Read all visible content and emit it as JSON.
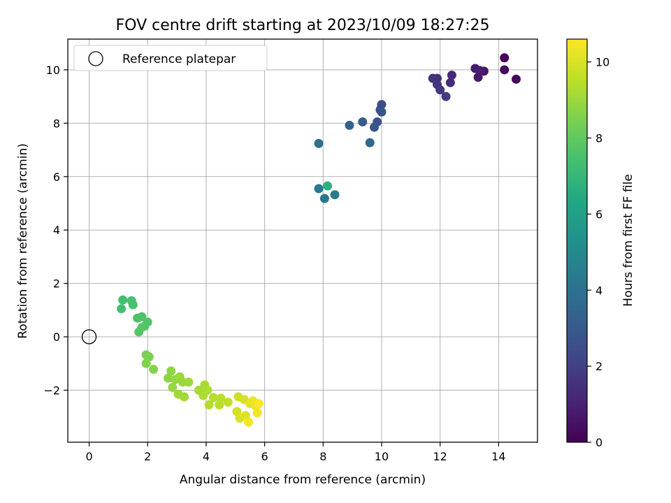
{
  "chart_data": {
    "type": "scatter",
    "title": "FOV centre drift starting at 2023/10/09 18:27:25",
    "xlabel": "Angular distance from reference (arcmin)",
    "ylabel": "Rotation from reference (arcmin)",
    "xlim": [
      -0.73,
      15.33
    ],
    "ylim": [
      -3.95,
      11.15
    ],
    "xticks": [
      0,
      2,
      4,
      6,
      8,
      10,
      12,
      14
    ],
    "yticks": [
      -2,
      0,
      2,
      4,
      6,
      8,
      10
    ],
    "grid": true,
    "legend": {
      "placement": "top-left",
      "entries": [
        "Reference platepar"
      ]
    },
    "reference_point": {
      "x": 0,
      "y": 0
    },
    "colorbar": {
      "label": "Hours from first FF file",
      "colormap": "viridis",
      "range": [
        0,
        10.6
      ],
      "ticks": [
        0,
        2,
        4,
        6,
        8,
        10
      ]
    },
    "points": [
      {
        "x": 14.2,
        "y": 10.45,
        "t": 0.1
      },
      {
        "x": 14.6,
        "y": 9.65,
        "t": 0.2
      },
      {
        "x": 14.2,
        "y": 10.0,
        "t": 0.3
      },
      {
        "x": 13.5,
        "y": 9.95,
        "t": 0.6
      },
      {
        "x": 13.3,
        "y": 9.72,
        "t": 0.7
      },
      {
        "x": 13.2,
        "y": 10.05,
        "t": 0.8
      },
      {
        "x": 13.35,
        "y": 9.98,
        "t": 0.9
      },
      {
        "x": 12.4,
        "y": 9.8,
        "t": 1.2
      },
      {
        "x": 12.35,
        "y": 9.52,
        "t": 1.3
      },
      {
        "x": 11.9,
        "y": 9.68,
        "t": 1.4
      },
      {
        "x": 11.75,
        "y": 9.68,
        "t": 1.5
      },
      {
        "x": 11.9,
        "y": 9.45,
        "t": 1.6
      },
      {
        "x": 12.0,
        "y": 9.25,
        "t": 1.7
      },
      {
        "x": 12.2,
        "y": 9.0,
        "t": 1.8
      },
      {
        "x": 10.0,
        "y": 8.7,
        "t": 2.5
      },
      {
        "x": 9.95,
        "y": 8.5,
        "t": 2.6
      },
      {
        "x": 10.0,
        "y": 8.42,
        "t": 2.7
      },
      {
        "x": 9.85,
        "y": 8.05,
        "t": 2.8
      },
      {
        "x": 9.75,
        "y": 7.85,
        "t": 2.9
      },
      {
        "x": 9.35,
        "y": 8.05,
        "t": 3.1
      },
      {
        "x": 8.9,
        "y": 7.92,
        "t": 3.3
      },
      {
        "x": 9.6,
        "y": 7.27,
        "t": 3.5
      },
      {
        "x": 7.85,
        "y": 7.24,
        "t": 3.9
      },
      {
        "x": 7.85,
        "y": 5.55,
        "t": 4.2
      },
      {
        "x": 8.05,
        "y": 5.18,
        "t": 4.3
      },
      {
        "x": 8.4,
        "y": 5.32,
        "t": 4.4
      },
      {
        "x": 8.15,
        "y": 5.65,
        "t": 6.7
      },
      {
        "x": 1.15,
        "y": 1.38,
        "t": 7.4
      },
      {
        "x": 1.1,
        "y": 1.05,
        "t": 7.4
      },
      {
        "x": 1.45,
        "y": 1.35,
        "t": 7.5
      },
      {
        "x": 1.5,
        "y": 1.2,
        "t": 7.5
      },
      {
        "x": 1.8,
        "y": 0.75,
        "t": 7.6
      },
      {
        "x": 1.65,
        "y": 0.7,
        "t": 7.6
      },
      {
        "x": 2.0,
        "y": 0.55,
        "t": 7.7
      },
      {
        "x": 1.9,
        "y": 0.4,
        "t": 7.7
      },
      {
        "x": 1.8,
        "y": 0.35,
        "t": 7.8
      },
      {
        "x": 1.7,
        "y": 0.18,
        "t": 7.8
      },
      {
        "x": 1.95,
        "y": -0.68,
        "t": 8.5
      },
      {
        "x": 2.05,
        "y": -0.75,
        "t": 8.5
      },
      {
        "x": 1.95,
        "y": -1.0,
        "t": 8.6
      },
      {
        "x": 2.2,
        "y": -1.22,
        "t": 8.6
      },
      {
        "x": 2.8,
        "y": -1.28,
        "t": 8.8
      },
      {
        "x": 2.7,
        "y": -1.55,
        "t": 8.8
      },
      {
        "x": 2.95,
        "y": -1.6,
        "t": 8.9
      },
      {
        "x": 2.85,
        "y": -1.9,
        "t": 8.9
      },
      {
        "x": 3.1,
        "y": -1.5,
        "t": 9.0
      },
      {
        "x": 3.2,
        "y": -1.7,
        "t": 9.0
      },
      {
        "x": 3.4,
        "y": -1.7,
        "t": 9.1
      },
      {
        "x": 3.05,
        "y": -2.15,
        "t": 9.1
      },
      {
        "x": 3.25,
        "y": -2.25,
        "t": 9.1
      },
      {
        "x": 3.75,
        "y": -2.0,
        "t": 9.2
      },
      {
        "x": 3.95,
        "y": -1.8,
        "t": 9.2
      },
      {
        "x": 4.05,
        "y": -2.0,
        "t": 9.3
      },
      {
        "x": 3.9,
        "y": -2.2,
        "t": 9.3
      },
      {
        "x": 4.25,
        "y": -2.28,
        "t": 9.4
      },
      {
        "x": 4.1,
        "y": -2.55,
        "t": 9.4
      },
      {
        "x": 4.45,
        "y": -2.55,
        "t": 9.5
      },
      {
        "x": 4.5,
        "y": -2.3,
        "t": 9.5
      },
      {
        "x": 4.75,
        "y": -2.45,
        "t": 9.6
      },
      {
        "x": 5.1,
        "y": -2.25,
        "t": 9.8
      },
      {
        "x": 5.3,
        "y": -2.35,
        "t": 9.9
      },
      {
        "x": 5.05,
        "y": -2.8,
        "t": 9.9
      },
      {
        "x": 5.15,
        "y": -3.05,
        "t": 10.0
      },
      {
        "x": 5.35,
        "y": -2.95,
        "t": 10.1
      },
      {
        "x": 5.5,
        "y": -2.5,
        "t": 10.2
      },
      {
        "x": 5.6,
        "y": -2.4,
        "t": 10.3
      },
      {
        "x": 5.7,
        "y": -2.6,
        "t": 10.3
      },
      {
        "x": 5.75,
        "y": -2.85,
        "t": 10.4
      },
      {
        "x": 5.45,
        "y": -3.2,
        "t": 10.5
      },
      {
        "x": 5.8,
        "y": -2.5,
        "t": 10.6
      }
    ]
  }
}
